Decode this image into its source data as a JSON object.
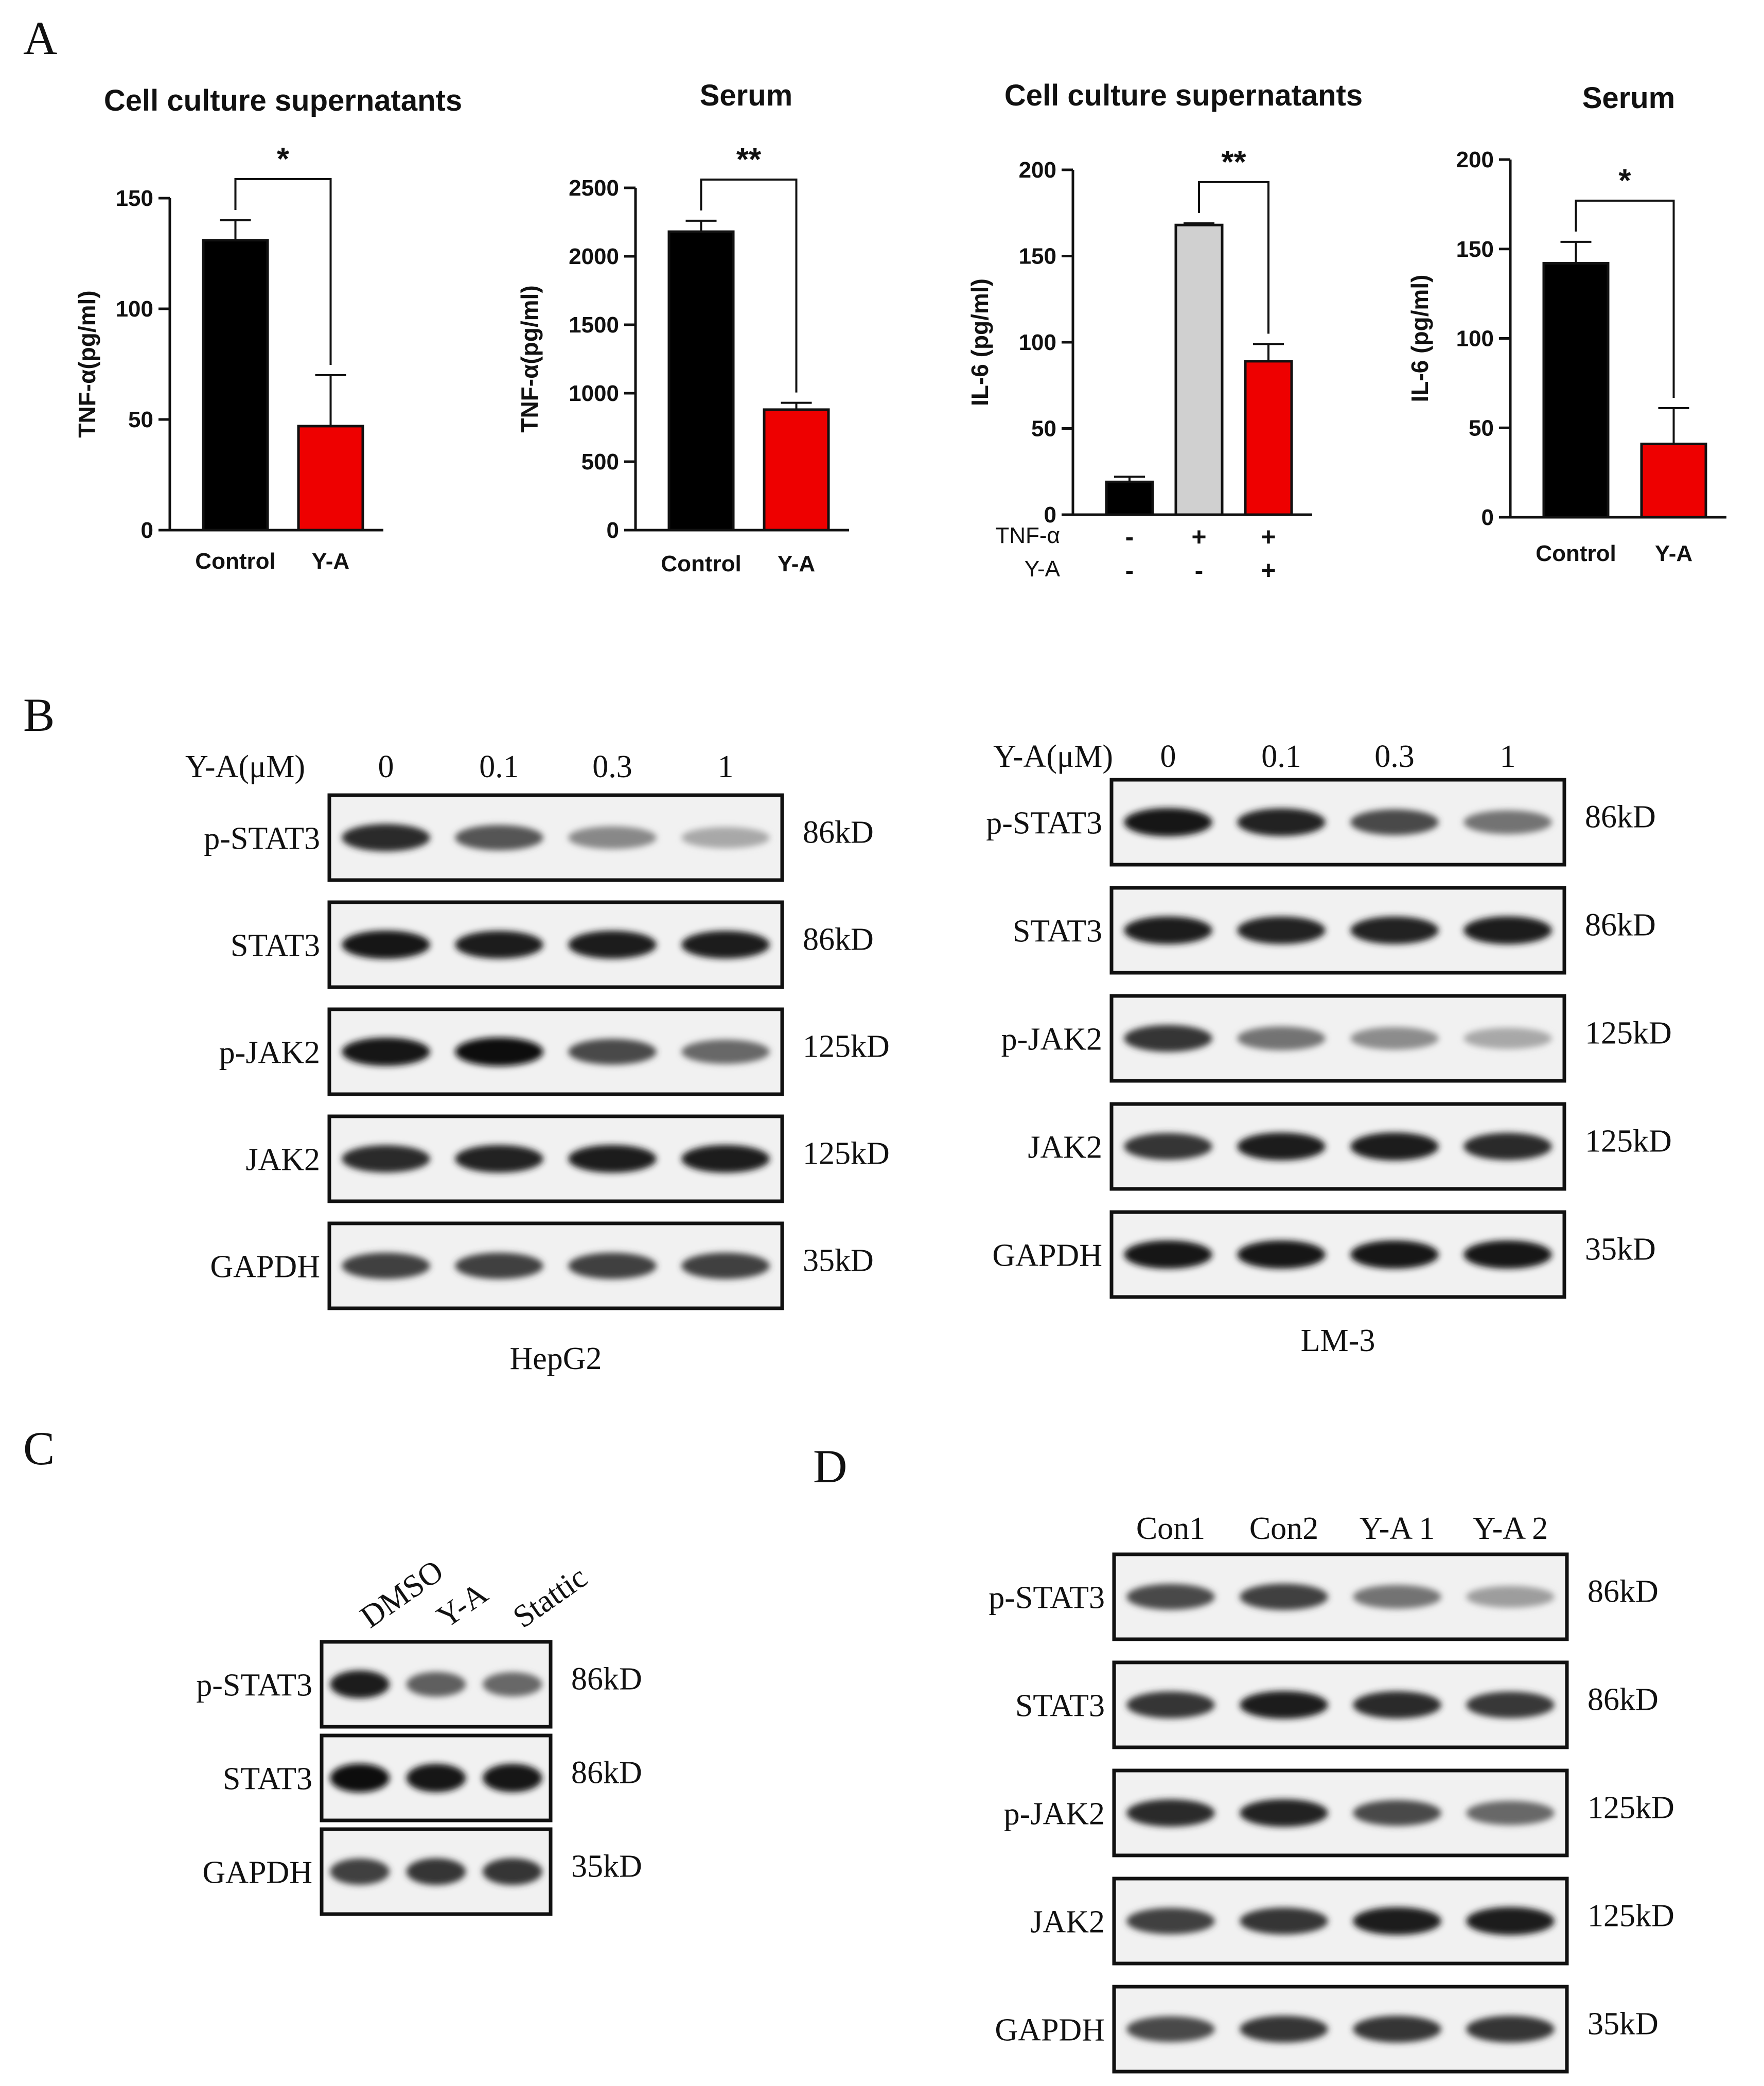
{
  "panels": {
    "A": "A",
    "B": "B",
    "C": "C",
    "D": "D"
  },
  "colors": {
    "black_bar": "#000000",
    "red_bar": "#ee0000",
    "gray_bar": "#d0d0d0"
  },
  "chart_data": [
    {
      "type": "bar",
      "title": "Cell culture supernatants",
      "ylabel": "TNF-α(pg/ml)",
      "categories": [
        "Control",
        "Y-A"
      ],
      "values": [
        131,
        47
      ],
      "errors": [
        9,
        23
      ],
      "ylim": [
        0,
        150
      ],
      "yticks": [
        0,
        50,
        100,
        150
      ],
      "significance": "*"
    },
    {
      "type": "bar",
      "title": "Serum",
      "ylabel": "TNF-α(pg/ml)",
      "categories": [
        "Control",
        "Y-A"
      ],
      "values": [
        2180,
        880
      ],
      "errors": [
        80,
        50
      ],
      "ylim": [
        0,
        2500
      ],
      "yticks": [
        0,
        500,
        1000,
        1500,
        2000,
        2500
      ],
      "significance": "**"
    },
    {
      "type": "bar",
      "title": "Cell culture supernatants",
      "ylabel": "IL-6 (pg/ml)",
      "categories": [
        "",
        "",
        ""
      ],
      "values": [
        19,
        168,
        89
      ],
      "errors": [
        3,
        1,
        10
      ],
      "ylim": [
        0,
        200
      ],
      "yticks": [
        0,
        50,
        100,
        150,
        200
      ],
      "significance": "**",
      "condition_rows": [
        {
          "label": "TNF-α",
          "marks": [
            "-",
            "+",
            "+"
          ]
        },
        {
          "label": "Y-A",
          "marks": [
            "-",
            "-",
            "+"
          ]
        }
      ]
    },
    {
      "type": "bar",
      "title": "Serum",
      "ylabel": "IL-6 (pg/ml)",
      "categories": [
        "Control",
        "Y-A"
      ],
      "values": [
        142,
        41
      ],
      "errors": [
        12,
        20
      ],
      "ylim": [
        0,
        200
      ],
      "yticks": [
        0,
        50,
        100,
        150,
        200
      ],
      "significance": "*"
    }
  ],
  "blots": {
    "B_left": {
      "header_label": "Y-A(μM)",
      "lanes": [
        "0",
        "0.1",
        "0.3",
        "1"
      ],
      "rows": [
        {
          "label": "p-STAT3",
          "size": "86kD",
          "intensity": [
            0.85,
            0.65,
            0.4,
            0.25
          ]
        },
        {
          "label": "STAT3",
          "size": "86kD",
          "intensity": [
            0.95,
            0.9,
            0.92,
            0.9
          ]
        },
        {
          "label": "p-JAK2",
          "size": "125kD",
          "intensity": [
            0.95,
            0.98,
            0.7,
            0.55
          ]
        },
        {
          "label": "JAK2",
          "size": "125kD",
          "intensity": [
            0.85,
            0.88,
            0.9,
            0.9
          ]
        },
        {
          "label": "GAPDH",
          "size": "35kD",
          "intensity": [
            0.75,
            0.75,
            0.75,
            0.75
          ]
        }
      ],
      "caption": "HepG2"
    },
    "B_right": {
      "header_label": "Y-A(μM)",
      "lanes": [
        "0",
        "0.1",
        "0.3",
        "1"
      ],
      "rows": [
        {
          "label": "p-STAT3",
          "size": "86kD",
          "intensity": [
            0.95,
            0.88,
            0.7,
            0.5
          ]
        },
        {
          "label": "STAT3",
          "size": "86kD",
          "intensity": [
            0.9,
            0.88,
            0.88,
            0.92
          ]
        },
        {
          "label": "p-JAK2",
          "size": "125kD",
          "intensity": [
            0.8,
            0.5,
            0.38,
            0.25
          ]
        },
        {
          "label": "JAK2",
          "size": "125kD",
          "intensity": [
            0.8,
            0.9,
            0.92,
            0.85
          ]
        },
        {
          "label": "GAPDH",
          "size": "35kD",
          "intensity": [
            0.95,
            0.95,
            0.95,
            0.95
          ]
        }
      ],
      "caption": "LM-3"
    },
    "C": {
      "lanes": [
        "DMSO",
        "Y-A",
        "Stattic"
      ],
      "rows": [
        {
          "label": "p-STAT3",
          "size": "86kD",
          "intensity": [
            0.9,
            0.6,
            0.55
          ]
        },
        {
          "label": "STAT3",
          "size": "86kD",
          "intensity": [
            0.98,
            0.95,
            0.95
          ]
        },
        {
          "label": "GAPDH",
          "size": "35kD",
          "intensity": [
            0.75,
            0.8,
            0.8
          ]
        }
      ]
    },
    "D": {
      "lanes": [
        "Con1",
        "Con2",
        "Y-A 1",
        "Y-A 2"
      ],
      "rows": [
        {
          "label": "p-STAT3",
          "size": "86kD",
          "intensity": [
            0.7,
            0.75,
            0.5,
            0.3
          ]
        },
        {
          "label": "STAT3",
          "size": "86kD",
          "intensity": [
            0.8,
            0.9,
            0.85,
            0.78
          ]
        },
        {
          "label": "p-JAK2",
          "size": "125kD",
          "intensity": [
            0.85,
            0.88,
            0.7,
            0.55
          ]
        },
        {
          "label": "JAK2",
          "size": "125kD",
          "intensity": [
            0.75,
            0.8,
            0.9,
            0.92
          ]
        },
        {
          "label": "GAPDH",
          "size": "35kD",
          "intensity": [
            0.7,
            0.8,
            0.8,
            0.8
          ]
        }
      ]
    }
  }
}
